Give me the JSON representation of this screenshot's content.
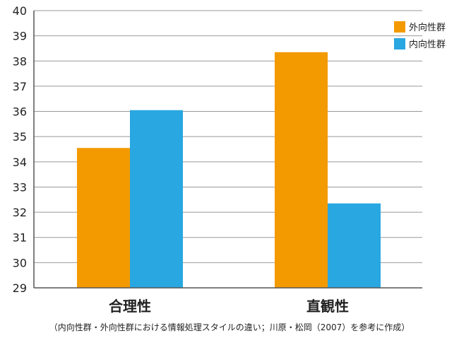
{
  "chart_data": {
    "type": "bar",
    "categories": [
      "合理性",
      "直観性"
    ],
    "series": [
      {
        "name": "外向性群",
        "values": [
          34.55,
          38.35
        ]
      },
      {
        "name": "内向性群",
        "values": [
          36.05,
          32.35
        ]
      }
    ],
    "ylim": [
      29,
      40
    ],
    "yticks": [
      29,
      30,
      31,
      32,
      33,
      34,
      35,
      36,
      37,
      38,
      39,
      40
    ],
    "grid": true,
    "legend_position": "top-right",
    "colors": {
      "外向性群": "#f39a00",
      "内向性群": "#29a7e1"
    }
  },
  "source_note": "（内向性群・外向性群における情報処理スタイルの違い；川原・松岡（2007）を参考に作成）"
}
